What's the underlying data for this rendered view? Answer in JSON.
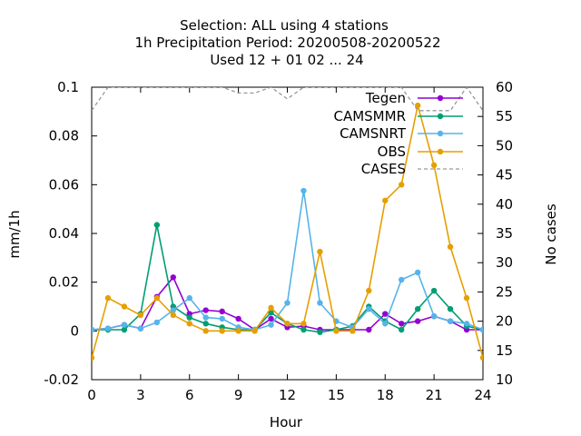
{
  "chart_data": {
    "type": "line",
    "title_lines": [
      "Selection: ALL using     4 stations",
      "1h Precipitation   Period: 20200508-20200522",
      "Used  12 + 01 02 ... 24"
    ],
    "xlabel": "Hour",
    "ylabel": "mm/1h",
    "y2label": "No cases",
    "xlim": [
      0,
      24
    ],
    "ylim": [
      -0.02,
      0.1
    ],
    "y2lim": [
      10,
      60
    ],
    "xticks": [
      0,
      3,
      6,
      9,
      12,
      15,
      18,
      21,
      24
    ],
    "yticks": [
      -0.02,
      0,
      0.02,
      0.04,
      0.06,
      0.08,
      0.1
    ],
    "y2ticks": [
      10,
      15,
      20,
      25,
      30,
      35,
      40,
      45,
      50,
      55,
      60
    ],
    "ytick_labels": [
      "-0.02",
      "0",
      "0.02",
      "0.04",
      "0.06",
      "0.08",
      "0.1"
    ],
    "grid": false,
    "legend_position": "top-right",
    "x": [
      0,
      1,
      2,
      3,
      4,
      5,
      6,
      7,
      8,
      9,
      10,
      11,
      12,
      13,
      14,
      15,
      16,
      17,
      18,
      19,
      20,
      21,
      22,
      23,
      24
    ],
    "series": [
      {
        "name": "Tegen",
        "axis": "y",
        "color": "#9400d3",
        "marker": "circle",
        "dashed": false,
        "values": [
          0.0005,
          0.001,
          0.0025,
          0.001,
          0.014,
          0.022,
          0.007,
          0.0085,
          0.008,
          0.005,
          0.0005,
          0.005,
          0.0015,
          0.002,
          0.0005,
          0.0005,
          0.0005,
          0.0005,
          0.007,
          0.003,
          0.004,
          0.006,
          0.004,
          0.0005,
          0.0005
        ]
      },
      {
        "name": "CAMSMMR",
        "axis": "y",
        "color": "#009e73",
        "marker": "circle",
        "dashed": false,
        "values": [
          0.0005,
          0.0005,
          0.0005,
          0.007,
          0.0435,
          0.01,
          0.0055,
          0.003,
          0.0015,
          0.0005,
          0.0005,
          0.0075,
          0.003,
          0.0005,
          -0.0005,
          0.0005,
          0.002,
          0.01,
          0.004,
          0.0005,
          0.009,
          0.0165,
          0.009,
          0.002,
          0.0005
        ]
      },
      {
        "name": "CAMSNRT",
        "axis": "y",
        "color": "#56b4e9",
        "marker": "circle",
        "dashed": false,
        "values": [
          0.0005,
          0.001,
          0.0025,
          0.001,
          0.0035,
          0.0085,
          0.0135,
          0.0055,
          0.005,
          0.0015,
          0.0005,
          0.0025,
          0.0115,
          0.0575,
          0.0115,
          0.004,
          0.0015,
          0.009,
          0.003,
          0.021,
          0.024,
          0.006,
          0.004,
          0.003,
          0.0005
        ]
      },
      {
        "name": "OBS",
        "axis": "y",
        "color": "#e69f00",
        "marker": "circle",
        "dashed": false,
        "values": [
          -0.011,
          0.0135,
          0.01,
          0.0065,
          0.0135,
          0.0065,
          0.003,
          0.0,
          0.0,
          0.0,
          0.0,
          0.0095,
          0.003,
          0.003,
          0.0325,
          0.0,
          0.0,
          0.0165,
          0.0535,
          0.06,
          0.0925,
          0.068,
          0.0345,
          0.0135,
          -0.011
        ]
      },
      {
        "name": "CASES",
        "axis": "y2",
        "color": "#999999",
        "marker": "none",
        "dashed": true,
        "values": [
          56,
          60,
          60,
          60,
          60,
          60,
          60,
          60,
          60,
          59,
          59,
          60,
          58,
          60,
          60,
          60,
          60,
          60,
          60,
          60,
          56,
          56,
          56,
          60,
          56
        ]
      }
    ]
  }
}
